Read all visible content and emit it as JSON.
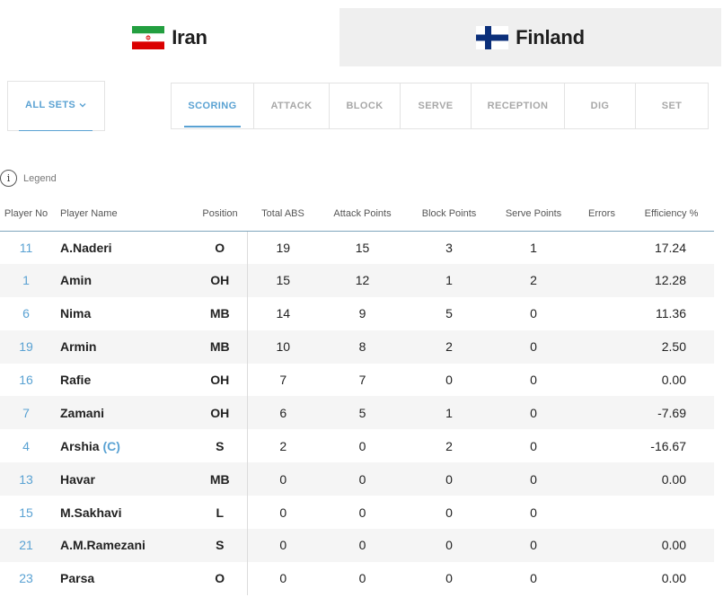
{
  "teams": {
    "home": {
      "name": "Iran",
      "flag_icon": "iran-flag-icon",
      "active": true
    },
    "away": {
      "name": "Finland",
      "flag_icon": "finland-flag-icon",
      "active": false
    }
  },
  "sets_filter": {
    "label": "ALL SETS"
  },
  "stat_tabs": [
    {
      "label": "SCORING",
      "active": true
    },
    {
      "label": "ATTACK",
      "active": false
    },
    {
      "label": "BLOCK",
      "active": false
    },
    {
      "label": "SERVE",
      "active": false
    },
    {
      "label": "RECEPTION",
      "active": false
    },
    {
      "label": "DIG",
      "active": false
    },
    {
      "label": "SET",
      "active": false
    }
  ],
  "legend": {
    "label": "Legend",
    "icon": "info-icon"
  },
  "table": {
    "headers": {
      "player_no": "Player No",
      "player_name": "Player Name",
      "position": "Position",
      "total_abs": "Total ABS",
      "attack_points": "Attack Points",
      "block_points": "Block Points",
      "serve_points": "Serve Points",
      "errors": "Errors",
      "efficiency": "Efficiency %"
    },
    "rows": [
      {
        "no": "11",
        "name": "A.Naderi",
        "captain": "",
        "pos": "O",
        "total": "19",
        "attack": "15",
        "block": "3",
        "serve": "1",
        "errors": "",
        "eff": "17.24"
      },
      {
        "no": "1",
        "name": "Amin",
        "captain": "",
        "pos": "OH",
        "total": "15",
        "attack": "12",
        "block": "1",
        "serve": "2",
        "errors": "",
        "eff": "12.28"
      },
      {
        "no": "6",
        "name": "Nima",
        "captain": "",
        "pos": "MB",
        "total": "14",
        "attack": "9",
        "block": "5",
        "serve": "0",
        "errors": "",
        "eff": "11.36"
      },
      {
        "no": "19",
        "name": "Armin",
        "captain": "",
        "pos": "MB",
        "total": "10",
        "attack": "8",
        "block": "2",
        "serve": "0",
        "errors": "",
        "eff": "2.50"
      },
      {
        "no": "16",
        "name": "Rafie",
        "captain": "",
        "pos": "OH",
        "total": "7",
        "attack": "7",
        "block": "0",
        "serve": "0",
        "errors": "",
        "eff": "0.00"
      },
      {
        "no": "7",
        "name": "Zamani",
        "captain": "",
        "pos": "OH",
        "total": "6",
        "attack": "5",
        "block": "1",
        "serve": "0",
        "errors": "",
        "eff": "-7.69"
      },
      {
        "no": "4",
        "name": "Arshia",
        "captain": "(C)",
        "pos": "S",
        "total": "2",
        "attack": "0",
        "block": "2",
        "serve": "0",
        "errors": "",
        "eff": "-16.67"
      },
      {
        "no": "13",
        "name": "Havar",
        "captain": "",
        "pos": "MB",
        "total": "0",
        "attack": "0",
        "block": "0",
        "serve": "0",
        "errors": "",
        "eff": "0.00"
      },
      {
        "no": "15",
        "name": "M.Sakhavi",
        "captain": "",
        "pos": "L",
        "total": "0",
        "attack": "0",
        "block": "0",
        "serve": "0",
        "errors": "",
        "eff": ""
      },
      {
        "no": "21",
        "name": "A.M.Ramezani",
        "captain": "",
        "pos": "S",
        "total": "0",
        "attack": "0",
        "block": "0",
        "serve": "0",
        "errors": "",
        "eff": "0.00"
      },
      {
        "no": "23",
        "name": "Parsa",
        "captain": "",
        "pos": "O",
        "total": "0",
        "attack": "0",
        "block": "0",
        "serve": "0",
        "errors": "",
        "eff": "0.00"
      }
    ]
  },
  "colors": {
    "accent": "#5aa2d3",
    "inactive_tab": "#a8a8a8",
    "away_tab_bg": "#efefef",
    "row_stripe": "#f5f5f5"
  }
}
